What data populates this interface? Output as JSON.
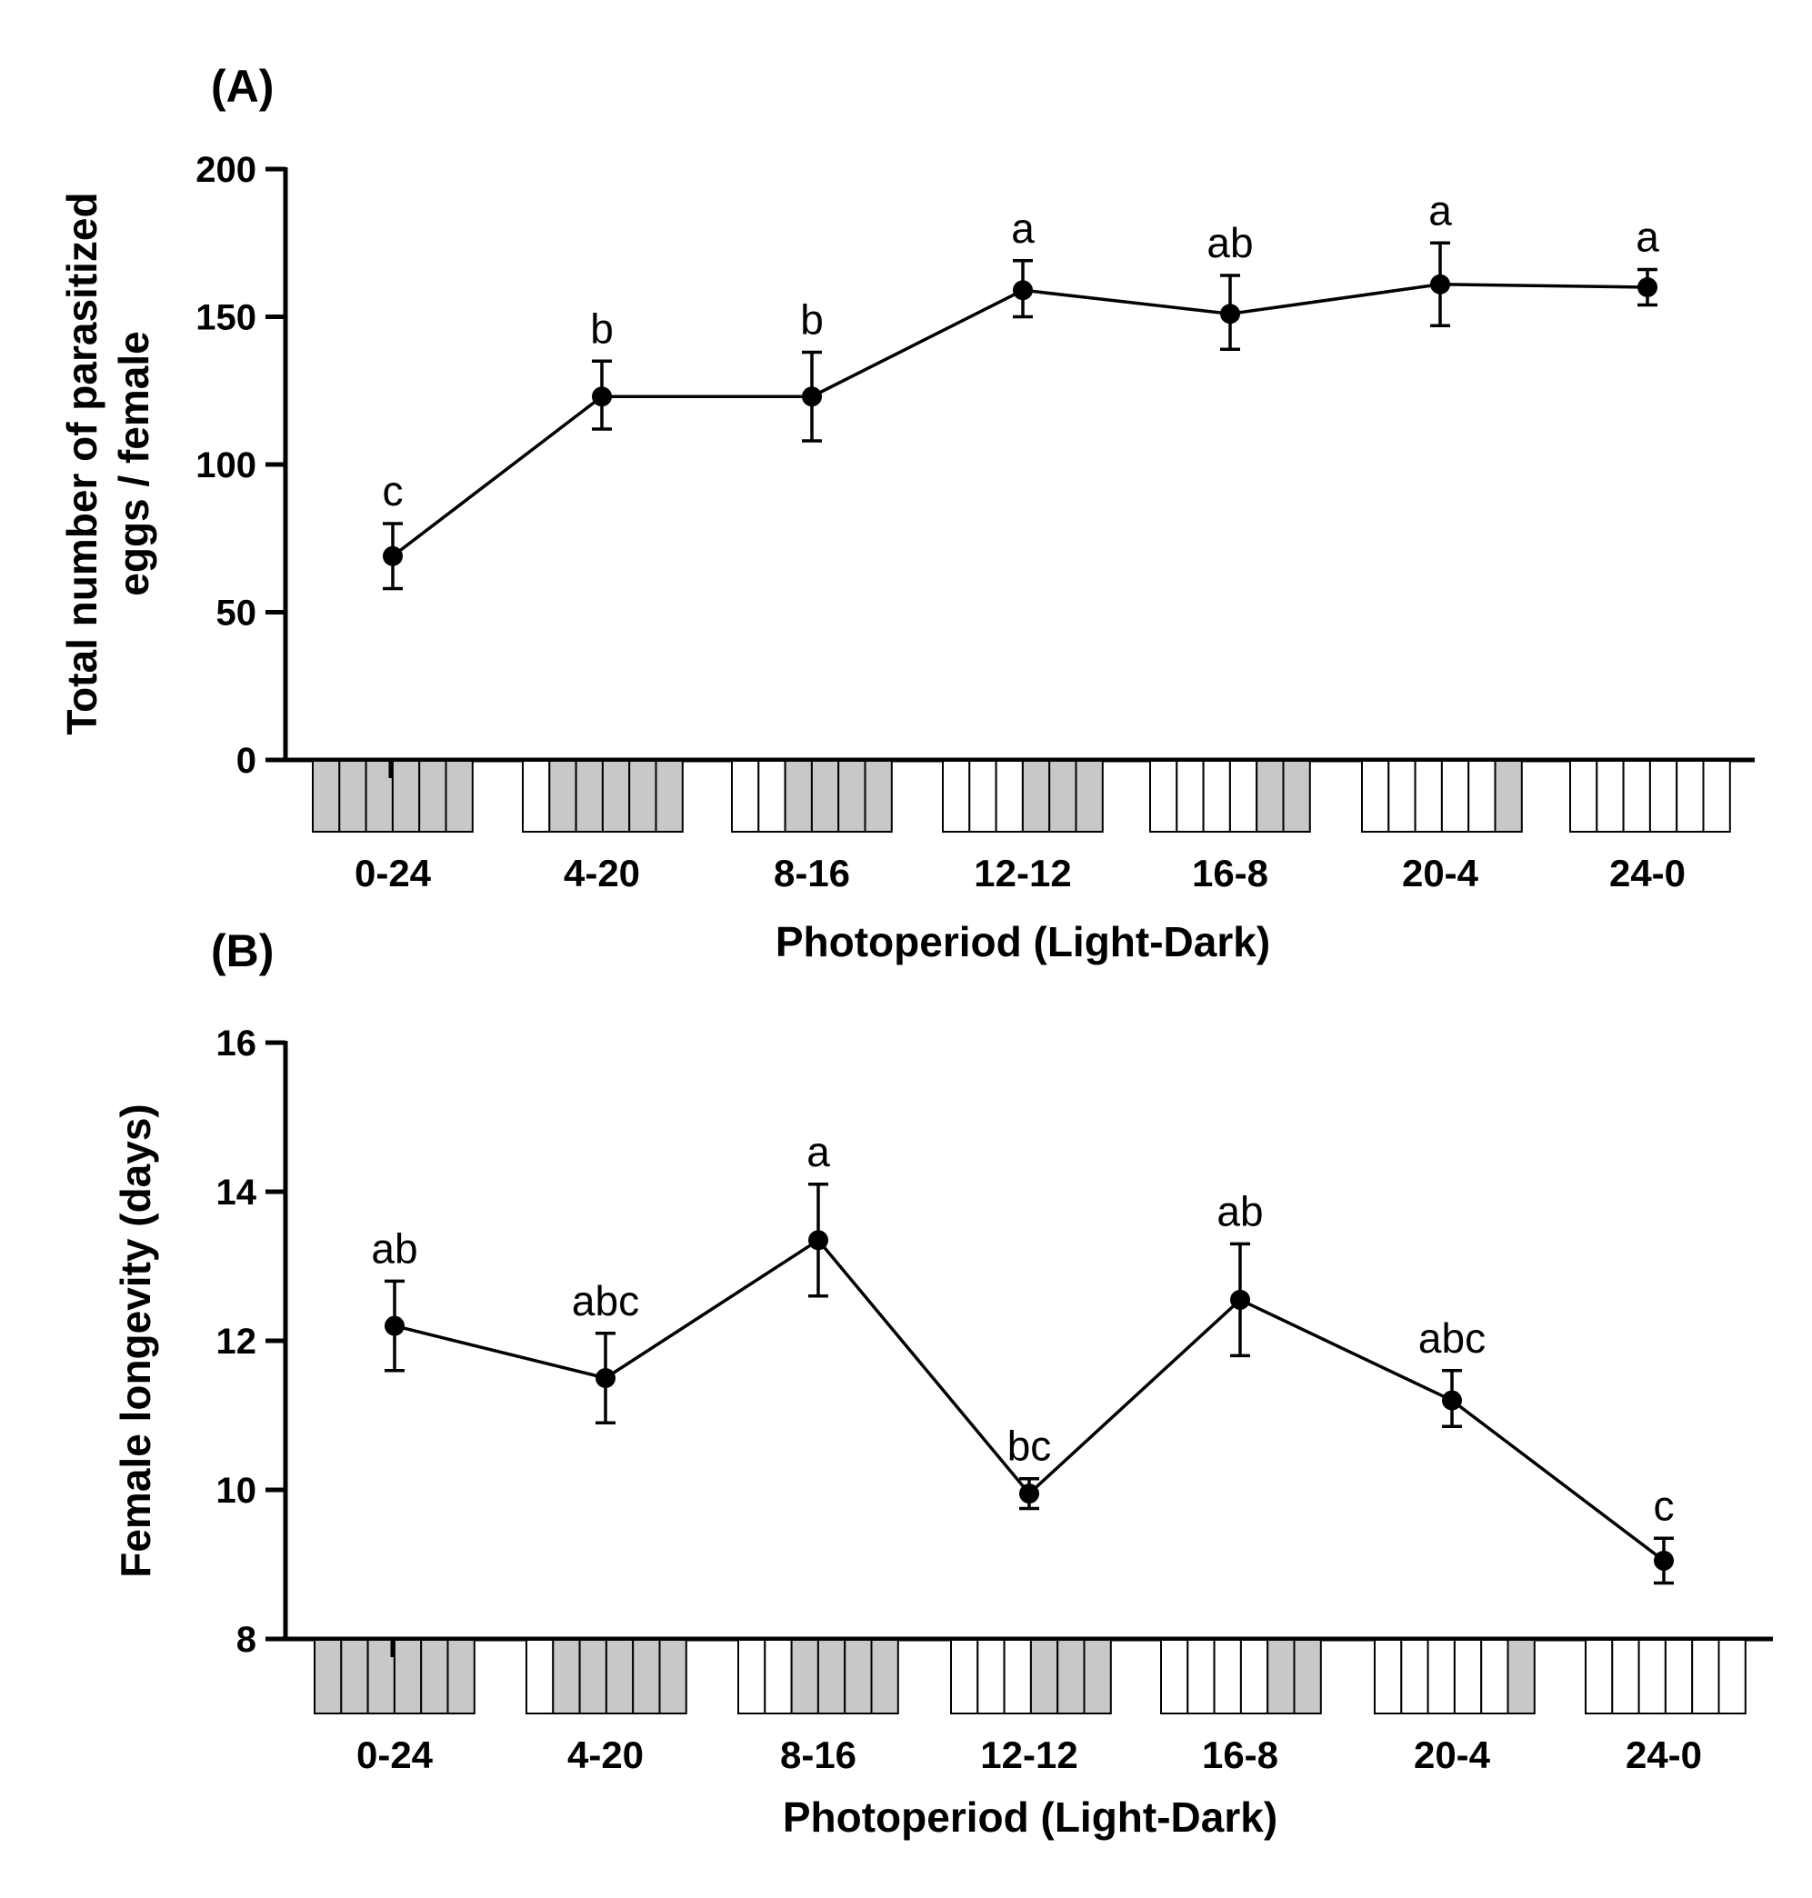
{
  "colors": {
    "ink": "#000000",
    "dark_cell": "#c8c8c8",
    "light_cell": "#ffffff"
  },
  "chart_data": [
    {
      "type": "line",
      "panel_label": "(A)",
      "title": "",
      "ylabel_lines": [
        "Total number of parasitized",
        "eggs / female"
      ],
      "xlabel": "Photoperiod (Light-Dark)",
      "categories": [
        "0-24",
        "4-20",
        "8-16",
        "12-12",
        "16-8",
        "20-4",
        "24-0"
      ],
      "light_hours": [
        0,
        4,
        8,
        12,
        16,
        20,
        24
      ],
      "ylim": [
        0,
        200
      ],
      "yticks": [
        0,
        50,
        100,
        150,
        200
      ],
      "ytick_labels": [
        "0",
        "50",
        "100",
        "150",
        "200"
      ],
      "grid": false,
      "series": [
        {
          "name": "Parasitized eggs",
          "values": [
            69,
            123,
            123,
            159,
            151,
            161,
            160
          ],
          "err_upper": [
            80,
            135,
            138,
            169,
            164,
            175,
            166
          ],
          "err_lower": [
            58,
            112,
            108,
            150,
            139,
            147,
            154
          ],
          "letters": [
            "c",
            "b",
            "b",
            "a",
            "ab",
            "a",
            "a"
          ]
        }
      ]
    },
    {
      "type": "line",
      "panel_label": "(B)",
      "title": "",
      "ylabel_lines": [
        "Female longevity (days)"
      ],
      "xlabel": "Photoperiod (Light-Dark)",
      "categories": [
        "0-24",
        "4-20",
        "8-16",
        "12-12",
        "16-8",
        "20-4",
        "24-0"
      ],
      "light_hours": [
        0,
        4,
        8,
        12,
        16,
        20,
        24
      ],
      "ylim": [
        8,
        16
      ],
      "yticks": [
        8,
        10,
        12,
        14,
        16
      ],
      "ytick_labels": [
        "8",
        "10",
        "12",
        "14",
        "16"
      ],
      "grid": false,
      "series": [
        {
          "name": "Female longevity",
          "values": [
            12.2,
            11.5,
            13.35,
            9.95,
            12.55,
            11.2,
            9.05
          ],
          "err_upper": [
            12.8,
            12.1,
            14.1,
            10.15,
            13.3,
            11.6,
            9.35
          ],
          "err_lower": [
            11.6,
            10.9,
            12.6,
            9.75,
            11.8,
            10.85,
            8.75
          ],
          "letters": [
            "ab",
            "abc",
            "a",
            "bc",
            "ab",
            "abc",
            "c"
          ]
        }
      ]
    }
  ]
}
